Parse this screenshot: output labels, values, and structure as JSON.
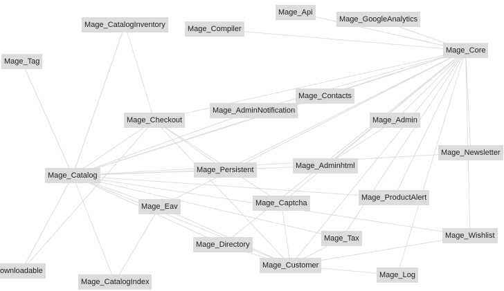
{
  "graph": {
    "node_color": "#dcdcdc",
    "edge_color": "#dcdcdc",
    "text_color": "#222222",
    "modules": [
      {
        "id": "api",
        "label": "Mage_Api"
      },
      {
        "id": "googleanalytics",
        "label": "Mage_GoogleAnalytics"
      },
      {
        "id": "cataloginventory",
        "label": "Mage_CatalogInventory"
      },
      {
        "id": "compiler",
        "label": "Mage_Compiler"
      },
      {
        "id": "core",
        "label": "Mage_Core"
      },
      {
        "id": "tag",
        "label": "Mage_Tag"
      },
      {
        "id": "contacts",
        "label": "Mage_Contacts"
      },
      {
        "id": "checkout",
        "label": "Mage_Checkout"
      },
      {
        "id": "adminnotification",
        "label": "Mage_AdminNotification"
      },
      {
        "id": "admin",
        "label": "Mage_Admin"
      },
      {
        "id": "newsletter",
        "label": "Mage_Newsletter"
      },
      {
        "id": "catalog",
        "label": "Mage_Catalog"
      },
      {
        "id": "persistent",
        "label": "Mage_Persistent"
      },
      {
        "id": "adminhtml",
        "label": "Mage_Adminhtml"
      },
      {
        "id": "productalert",
        "label": "Mage_ProductAlert"
      },
      {
        "id": "eav",
        "label": "Mage_Eav"
      },
      {
        "id": "captcha",
        "label": "Mage_Captcha"
      },
      {
        "id": "wishlist",
        "label": "Mage_Wishlist"
      },
      {
        "id": "tax",
        "label": "Mage_Tax"
      },
      {
        "id": "directory",
        "label": "Mage_Directory"
      },
      {
        "id": "customer",
        "label": "Mage_Customer"
      },
      {
        "id": "downloadable",
        "label": "ownloadable"
      },
      {
        "id": "log",
        "label": "Mage_Log"
      },
      {
        "id": "catalogindex",
        "label": "Mage_CatalogIndex"
      }
    ],
    "dependencies": [
      [
        "cataloginventory",
        "catalog"
      ],
      [
        "checkout",
        "catalog"
      ],
      [
        "checkout",
        "cataloginventory"
      ],
      [
        "checkout",
        "core"
      ],
      [
        "catalog",
        "core"
      ],
      [
        "catalog",
        "cataloginventory"
      ],
      [
        "compiler",
        "core"
      ],
      [
        "api",
        "core"
      ],
      [
        "googleanalytics",
        "core"
      ],
      [
        "contacts",
        "core"
      ],
      [
        "adminnotification",
        "core"
      ],
      [
        "admin",
        "core"
      ],
      [
        "adminhtml",
        "core"
      ],
      [
        "adminhtml",
        "catalog"
      ],
      [
        "adminhtml",
        "admin"
      ],
      [
        "persistent",
        "catalog"
      ],
      [
        "persistent",
        "checkout"
      ],
      [
        "persistent",
        "core"
      ],
      [
        "eav",
        "catalog"
      ],
      [
        "eav",
        "core"
      ],
      [
        "captcha",
        "checkout"
      ],
      [
        "captcha",
        "core"
      ],
      [
        "captcha",
        "customer"
      ],
      [
        "tax",
        "catalog"
      ],
      [
        "tax",
        "customer"
      ],
      [
        "tax",
        "core"
      ],
      [
        "directory",
        "catalog"
      ],
      [
        "directory",
        "core"
      ],
      [
        "customer",
        "catalog"
      ],
      [
        "customer",
        "checkout"
      ],
      [
        "customer",
        "core"
      ],
      [
        "customer",
        "eav"
      ],
      [
        "customer",
        "directory"
      ],
      [
        "wishlist",
        "catalog"
      ],
      [
        "wishlist",
        "customer"
      ],
      [
        "wishlist",
        "core"
      ],
      [
        "productalert",
        "catalog"
      ],
      [
        "productalert",
        "core"
      ],
      [
        "newsletter",
        "core"
      ],
      [
        "newsletter",
        "catalog"
      ],
      [
        "log",
        "customer"
      ],
      [
        "log",
        "core"
      ],
      [
        "catalogindex",
        "catalog"
      ],
      [
        "catalogindex",
        "eav"
      ],
      [
        "downloadable",
        "catalog"
      ],
      [
        "downloadable",
        "checkout"
      ],
      [
        "tag",
        "catalog"
      ],
      [
        "adminnotification",
        "catalog"
      ],
      [
        "contacts",
        "catalog"
      ]
    ]
  }
}
